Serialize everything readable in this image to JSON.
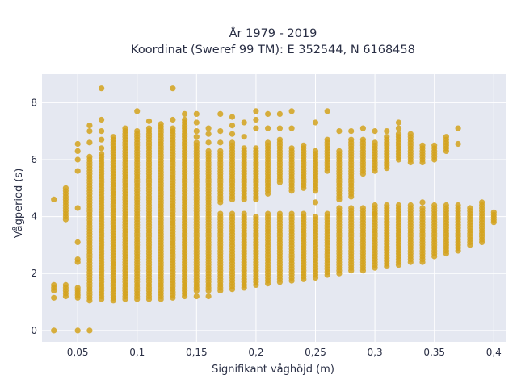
{
  "chart_data": {
    "type": "scatter",
    "title_line1": "År 1979 - 2019",
    "title_line2": "Koordinat (Sweref 99 TM): E 352544, N 6168458",
    "xlabel": "Signifikant våghöjd (m)",
    "ylabel": "Vågperiod (s)",
    "xlim": [
      0.02,
      0.41
    ],
    "ylim": [
      -0.4,
      9.0
    ],
    "x_ticks": [
      {
        "value": 0.05,
        "label": "0,05"
      },
      {
        "value": 0.1,
        "label": "0,1"
      },
      {
        "value": 0.15,
        "label": "0,15"
      },
      {
        "value": 0.2,
        "label": "0,2"
      },
      {
        "value": 0.25,
        "label": "0,25"
      },
      {
        "value": 0.3,
        "label": "0,3"
      },
      {
        "value": 0.35,
        "label": "0,35"
      },
      {
        "value": 0.4,
        "label": "0,4"
      }
    ],
    "y_ticks": [
      {
        "value": 0,
        "label": "0"
      },
      {
        "value": 2,
        "label": "2"
      },
      {
        "value": 4,
        "label": "4"
      },
      {
        "value": 6,
        "label": "6"
      },
      {
        "value": 8,
        "label": "8"
      }
    ],
    "grid": true,
    "marker_color": "#d4a21c",
    "background_color": "#e5e8f1",
    "columns": [
      {
        "x": 0.03,
        "segments": [
          [
            1.4,
            1.6
          ]
        ],
        "points": [
          0,
          1.15,
          4.6
        ]
      },
      {
        "x": 0.04,
        "segments": [
          [
            1.2,
            1.6
          ],
          [
            3.9,
            5.0
          ]
        ],
        "points": []
      },
      {
        "x": 0.05,
        "segments": [
          [
            1.15,
            1.5
          ]
        ],
        "points": [
          0,
          2.4,
          2.5,
          3.1,
          4.3,
          5.6,
          6.0,
          6.3,
          6.55
        ]
      },
      {
        "x": 0.06,
        "segments": [
          [
            1.05,
            6.1
          ]
        ],
        "points": [
          0,
          6.6,
          7.0,
          7.2
        ]
      },
      {
        "x": 0.07,
        "segments": [
          [
            1.1,
            6.2
          ]
        ],
        "points": [
          6.4,
          6.7,
          7.0,
          7.4,
          8.5
        ]
      },
      {
        "x": 0.08,
        "segments": [
          [
            1.05,
            6.8
          ]
        ],
        "points": []
      },
      {
        "x": 0.09,
        "segments": [
          [
            1.1,
            7.1
          ]
        ],
        "points": []
      },
      {
        "x": 0.1,
        "segments": [
          [
            1.1,
            7.0
          ]
        ],
        "points": [
          7.7
        ]
      },
      {
        "x": 0.11,
        "segments": [
          [
            1.1,
            7.1
          ]
        ],
        "points": [
          7.35
        ]
      },
      {
        "x": 0.12,
        "segments": [
          [
            1.1,
            7.25
          ]
        ],
        "points": []
      },
      {
        "x": 0.13,
        "segments": [
          [
            1.15,
            7.1
          ]
        ],
        "points": [
          7.4,
          8.5
        ]
      },
      {
        "x": 0.14,
        "segments": [
          [
            1.2,
            7.4
          ]
        ],
        "points": [
          7.6
        ]
      },
      {
        "x": 0.15,
        "segments": [
          [
            1.4,
            6.6
          ]
        ],
        "points": [
          1.2,
          6.8,
          7.0,
          7.3,
          7.6
        ]
      },
      {
        "x": 0.16,
        "segments": [
          [
            1.4,
            6.3
          ]
        ],
        "points": [
          1.2,
          6.6,
          6.9,
          7.1
        ]
      },
      {
        "x": 0.17,
        "segments": [
          [
            1.4,
            4.1
          ],
          [
            4.5,
            6.3
          ]
        ],
        "points": [
          6.6,
          7.0,
          7.6
        ]
      },
      {
        "x": 0.18,
        "segments": [
          [
            1.45,
            4.1
          ],
          [
            4.6,
            6.6
          ]
        ],
        "points": [
          6.9,
          7.2,
          7.5
        ]
      },
      {
        "x": 0.19,
        "segments": [
          [
            1.5,
            4.1
          ],
          [
            4.6,
            6.4
          ]
        ],
        "points": [
          6.8,
          7.3
        ]
      },
      {
        "x": 0.2,
        "segments": [
          [
            1.6,
            4.0
          ],
          [
            4.6,
            6.4
          ]
        ],
        "points": [
          7.1,
          7.4,
          7.7
        ]
      },
      {
        "x": 0.21,
        "segments": [
          [
            1.65,
            4.1
          ],
          [
            4.8,
            6.6
          ]
        ],
        "points": [
          7.1,
          7.6
        ]
      },
      {
        "x": 0.22,
        "segments": [
          [
            1.7,
            4.1
          ],
          [
            5.2,
            6.7
          ]
        ],
        "points": [
          7.1,
          7.6
        ]
      },
      {
        "x": 0.23,
        "segments": [
          [
            1.75,
            4.1
          ],
          [
            4.9,
            6.4
          ]
        ],
        "points": [
          7.1,
          7.7
        ]
      },
      {
        "x": 0.24,
        "segments": [
          [
            1.8,
            4.1
          ],
          [
            5.0,
            6.5
          ]
        ],
        "points": []
      },
      {
        "x": 0.25,
        "segments": [
          [
            1.85,
            4.0
          ],
          [
            4.9,
            6.3
          ]
        ],
        "points": [
          4.5,
          7.3
        ]
      },
      {
        "x": 0.26,
        "segments": [
          [
            1.95,
            4.1
          ],
          [
            5.6,
            6.7
          ]
        ],
        "points": [
          7.7
        ]
      },
      {
        "x": 0.27,
        "segments": [
          [
            2.0,
            4.3
          ],
          [
            4.6,
            6.3
          ]
        ],
        "points": [
          4.1,
          7.0
        ]
      },
      {
        "x": 0.28,
        "segments": [
          [
            2.1,
            4.3
          ],
          [
            4.7,
            6.7
          ]
        ],
        "points": [
          7.0
        ]
      },
      {
        "x": 0.29,
        "segments": [
          [
            2.1,
            4.3
          ],
          [
            5.5,
            6.7
          ]
        ],
        "points": [
          7.1
        ]
      },
      {
        "x": 0.3,
        "segments": [
          [
            2.2,
            4.4
          ],
          [
            5.6,
            6.6
          ]
        ],
        "points": [
          4.1,
          7.0
        ]
      },
      {
        "x": 0.31,
        "segments": [
          [
            2.25,
            4.4
          ],
          [
            5.7,
            6.8
          ]
        ],
        "points": [
          7.0
        ]
      },
      {
        "x": 0.32,
        "segments": [
          [
            2.3,
            4.4
          ],
          [
            6.0,
            6.9
          ]
        ],
        "points": [
          7.1,
          7.3
        ]
      },
      {
        "x": 0.33,
        "segments": [
          [
            2.4,
            4.4
          ],
          [
            5.9,
            6.9
          ]
        ],
        "points": []
      },
      {
        "x": 0.34,
        "segments": [
          [
            2.4,
            4.3
          ],
          [
            5.9,
            6.5
          ]
        ],
        "points": [
          4.5
        ]
      },
      {
        "x": 0.35,
        "segments": [
          [
            2.6,
            4.4
          ],
          [
            6.0,
            6.5
          ]
        ],
        "points": []
      },
      {
        "x": 0.36,
        "segments": [
          [
            2.7,
            4.4
          ],
          [
            6.3,
            6.8
          ]
        ],
        "points": []
      },
      {
        "x": 0.37,
        "segments": [
          [
            2.8,
            4.4
          ]
        ],
        "points": [
          7.1,
          6.55
        ]
      },
      {
        "x": 0.38,
        "segments": [
          [
            3.0,
            4.3
          ]
        ],
        "points": []
      },
      {
        "x": 0.39,
        "segments": [
          [
            3.1,
            4.5
          ]
        ],
        "points": []
      },
      {
        "x": 0.4,
        "segments": [
          [
            3.8,
            4.15
          ]
        ],
        "points": []
      }
    ]
  }
}
